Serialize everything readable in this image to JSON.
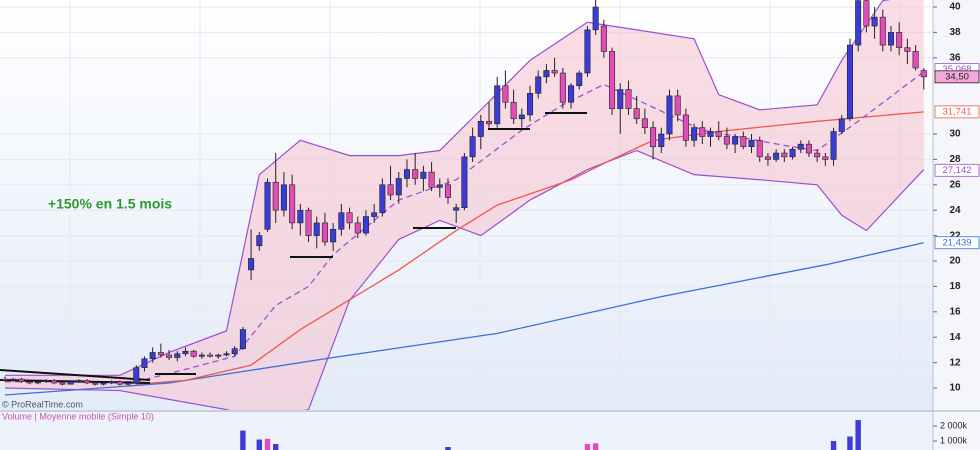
{
  "chart_data": {
    "type": "candlestick",
    "annotation": "+150% en 1.5 mois",
    "watermark": "© ProRealTime.com",
    "up_color": "#3b3bd6",
    "down_color": "#e24cb8",
    "ylim": [
      8.27,
      40.55
    ],
    "yticks": [
      10,
      12,
      14,
      16,
      18,
      20,
      22,
      24,
      26,
      28,
      30,
      36,
      38,
      40
    ],
    "grid": true,
    "candles": [
      [
        10.7,
        10.9,
        10.5,
        10.6
      ],
      [
        10.6,
        10.8,
        10.5,
        10.7
      ],
      [
        10.7,
        10.8,
        10.4,
        10.5
      ],
      [
        10.5,
        10.6,
        10.3,
        10.4
      ],
      [
        10.4,
        10.6,
        10.3,
        10.5
      ],
      [
        10.5,
        10.7,
        10.4,
        10.6
      ],
      [
        10.6,
        10.7,
        10.3,
        10.4
      ],
      [
        10.4,
        10.5,
        10.2,
        10.3
      ],
      [
        10.3,
        10.6,
        10.3,
        10.5
      ],
      [
        10.5,
        10.7,
        10.4,
        10.6
      ],
      [
        10.6,
        10.7,
        10.3,
        10.4
      ],
      [
        10.4,
        10.5,
        10.2,
        10.3
      ],
      [
        10.3,
        10.5,
        10.2,
        10.4
      ],
      [
        10.4,
        10.6,
        10.3,
        10.5
      ],
      [
        10.5,
        10.6,
        10.2,
        10.3
      ],
      [
        10.3,
        10.5,
        10.2,
        10.4
      ],
      [
        10.4,
        11.8,
        10.3,
        11.6
      ],
      [
        11.6,
        12.5,
        11.3,
        12.3
      ],
      [
        12.3,
        13.2,
        12.0,
        12.8
      ],
      [
        12.8,
        13.5,
        12.4,
        12.6
      ],
      [
        12.6,
        13.0,
        12.2,
        12.4
      ],
      [
        12.4,
        12.9,
        12.1,
        12.7
      ],
      [
        12.7,
        13.2,
        12.5,
        12.9
      ],
      [
        12.9,
        13.0,
        12.4,
        12.5
      ],
      [
        12.5,
        12.8,
        12.3,
        12.6
      ],
      [
        12.6,
        12.8,
        12.4,
        12.5
      ],
      [
        12.5,
        12.7,
        12.3,
        12.6
      ],
      [
        12.6,
        12.9,
        12.5,
        12.7
      ],
      [
        12.7,
        13.3,
        12.5,
        13.1
      ],
      [
        13.1,
        14.8,
        13.0,
        14.6
      ],
      [
        19.3,
        22.5,
        18.5,
        20.2
      ],
      [
        21.2,
        22.3,
        20.8,
        22.0
      ],
      [
        22.5,
        26.5,
        22.3,
        26.2
      ],
      [
        26.2,
        28.5,
        23.0,
        24.0
      ],
      [
        24.0,
        27.0,
        23.5,
        26.0
      ],
      [
        26.0,
        26.8,
        22.5,
        23.0
      ],
      [
        23.0,
        24.5,
        22.0,
        24.0
      ],
      [
        24.0,
        24.2,
        21.5,
        22.0
      ],
      [
        22.0,
        23.5,
        21.0,
        23.0
      ],
      [
        23.0,
        23.8,
        21.2,
        21.5
      ],
      [
        21.5,
        23.0,
        20.8,
        22.5
      ],
      [
        22.5,
        24.5,
        22.0,
        23.8
      ],
      [
        23.8,
        24.2,
        22.5,
        23.0
      ],
      [
        23.0,
        23.5,
        21.8,
        22.2
      ],
      [
        22.2,
        24.0,
        22.0,
        23.5
      ],
      [
        23.5,
        24.5,
        23.0,
        23.8
      ],
      [
        23.8,
        26.5,
        23.5,
        26.0
      ],
      [
        26.0,
        27.5,
        24.8,
        25.2
      ],
      [
        25.2,
        27.0,
        24.5,
        26.5
      ],
      [
        26.5,
        28.0,
        25.8,
        27.2
      ],
      [
        27.2,
        28.5,
        26.0,
        26.5
      ],
      [
        26.5,
        27.5,
        25.5,
        27.0
      ],
      [
        27.0,
        27.8,
        25.5,
        25.8
      ],
      [
        25.8,
        26.5,
        25.0,
        26.0
      ],
      [
        26.0,
        26.5,
        24.5,
        25.0
      ],
      [
        24.0,
        24.5,
        23.0,
        24.2
      ],
      [
        24.2,
        28.5,
        24.0,
        28.2
      ],
      [
        28.2,
        30.5,
        27.8,
        29.8
      ],
      [
        29.8,
        31.5,
        28.8,
        31.0
      ],
      [
        31.0,
        32.5,
        30.5,
        30.8
      ],
      [
        30.8,
        34.5,
        30.5,
        33.8
      ],
      [
        33.8,
        35.0,
        32.0,
        32.5
      ],
      [
        32.5,
        33.5,
        30.8,
        31.2
      ],
      [
        31.2,
        32.0,
        30.5,
        31.5
      ],
      [
        31.5,
        33.8,
        31.0,
        33.2
      ],
      [
        33.2,
        35.0,
        32.8,
        34.5
      ],
      [
        34.5,
        35.5,
        34.0,
        35.0
      ],
      [
        35.0,
        36.0,
        34.5,
        34.8
      ],
      [
        34.8,
        35.2,
        32.0,
        32.5
      ],
      [
        32.5,
        34.0,
        32.0,
        33.8
      ],
      [
        33.8,
        35.0,
        33.5,
        34.8
      ],
      [
        34.8,
        38.5,
        34.5,
        38.2
      ],
      [
        38.2,
        40.8,
        37.8,
        40.0
      ],
      [
        38.5,
        39.0,
        36.0,
        36.5
      ],
      [
        36.5,
        36.8,
        31.5,
        32.0
      ],
      [
        32.0,
        34.0,
        30.0,
        33.5
      ],
      [
        33.5,
        34.2,
        31.5,
        32.0
      ],
      [
        32.0,
        33.0,
        30.8,
        31.2
      ],
      [
        31.2,
        32.0,
        30.0,
        30.5
      ],
      [
        30.5,
        31.0,
        28.0,
        29.0
      ],
      [
        29.0,
        30.5,
        28.5,
        30.0
      ],
      [
        30.0,
        33.5,
        29.5,
        33.0
      ],
      [
        33.0,
        33.5,
        31.0,
        31.5
      ],
      [
        31.5,
        32.0,
        29.0,
        29.5
      ],
      [
        29.5,
        30.8,
        29.0,
        30.5
      ],
      [
        30.5,
        31.0,
        29.2,
        29.8
      ],
      [
        29.8,
        30.5,
        29.0,
        30.2
      ],
      [
        30.2,
        31.0,
        29.5,
        29.8
      ],
      [
        29.8,
        30.5,
        28.8,
        29.2
      ],
      [
        29.2,
        30.0,
        28.5,
        29.8
      ],
      [
        29.8,
        30.2,
        28.8,
        29.0
      ],
      [
        29.0,
        30.0,
        28.5,
        29.5
      ],
      [
        29.5,
        29.8,
        27.8,
        28.2
      ],
      [
        28.2,
        28.5,
        27.5,
        28.0
      ],
      [
        28.0,
        28.8,
        27.8,
        28.5
      ],
      [
        28.5,
        28.8,
        27.8,
        28.2
      ],
      [
        28.2,
        29.0,
        28.0,
        28.8
      ],
      [
        28.8,
        29.5,
        28.5,
        29.2
      ],
      [
        29.2,
        29.5,
        28.2,
        28.5
      ],
      [
        28.5,
        28.8,
        27.8,
        28.2
      ],
      [
        28.2,
        28.5,
        27.5,
        28.0
      ],
      [
        28.0,
        30.5,
        27.5,
        30.2
      ],
      [
        30.2,
        31.5,
        30.0,
        31.2
      ],
      [
        31.2,
        37.5,
        31.0,
        37.0
      ],
      [
        37.0,
        41.0,
        36.5,
        40.5
      ],
      [
        40.5,
        41.0,
        38.0,
        38.5
      ],
      [
        38.5,
        40.0,
        37.5,
        39.2
      ],
      [
        39.2,
        39.8,
        36.5,
        37.0
      ],
      [
        37.0,
        38.5,
        36.5,
        38.0
      ],
      [
        38.0,
        38.8,
        36.2,
        36.8
      ],
      [
        36.8,
        37.5,
        35.5,
        36.5
      ],
      [
        36.5,
        37.0,
        35.0,
        35.2
      ],
      [
        35.0,
        35.2,
        33.5,
        34.5
      ]
    ],
    "lines": [
      {
        "color": "#3a6fd8",
        "dash": false,
        "x": [
          0,
          20,
          40,
          60,
          80,
          100,
          112
        ],
        "values": [
          9.45,
          10.4,
          12.4,
          14.3,
          17.2,
          19.7,
          21.439
        ]
      },
      {
        "color": "#f0584a",
        "dash": false,
        "x": [
          16,
          22,
          30,
          36,
          48,
          55,
          60,
          69,
          74,
          79,
          87,
          99,
          112
        ],
        "values": [
          10.3,
          10.6,
          11.8,
          14.6,
          19.3,
          22.4,
          24.4,
          26.4,
          28,
          29.5,
          30.2,
          31.0,
          31.741
        ]
      },
      {
        "color": "#a050d0",
        "dash": true,
        "x": [
          0,
          16,
          21,
          28,
          33,
          37,
          40,
          48,
          55,
          63,
          68,
          73,
          77,
          85,
          95,
          99,
          104,
          112
        ],
        "values": [
          10.5,
          10.5,
          11.3,
          12.5,
          16.5,
          18,
          20.5,
          24.8,
          26.4,
          30.3,
          32.3,
          33.9,
          32.7,
          30.3,
          29.1,
          28.7,
          31,
          34.9
        ]
      }
    ],
    "band": {
      "color": "#9b4fd0",
      "fill": "#f6c6d2",
      "upper": {
        "x": [
          0,
          14,
          20,
          27,
          31,
          36,
          42,
          48,
          53,
          58,
          64,
          71,
          77,
          84,
          87,
          92,
          99,
          102,
          107,
          112
        ],
        "values": [
          11.0,
          11.0,
          12.8,
          14.5,
          26.8,
          29.5,
          28.3,
          28.3,
          28.7,
          31.9,
          35.8,
          38.8,
          38.2,
          37.5,
          33.1,
          31.9,
          32.3,
          35.8,
          40.5,
          41.0
        ]
      },
      "lower": {
        "x": [
          0,
          14,
          27,
          31,
          37,
          42,
          48,
          53,
          58,
          64,
          71,
          77,
          84,
          92,
          99,
          102,
          105,
          112
        ],
        "values": [
          10.0,
          9.8,
          8.3,
          7.5,
          8.3,
          16.9,
          21.7,
          23.2,
          22.0,
          24.8,
          27.2,
          28.7,
          26.8,
          26.4,
          26.0,
          23.6,
          22.4,
          27.2
        ]
      }
    },
    "price_tags": [
      {
        "value": 35.068,
        "label": "35,068",
        "color": "#9b4fd0",
        "bg": "#ffffff"
      },
      {
        "value": 34.5,
        "label": "34,50",
        "color": "#222222",
        "bg": "#f7a8d8"
      },
      {
        "value": 31.741,
        "label": "31,741",
        "color": "#f0584a",
        "bg": "#ffffff"
      },
      {
        "value": 27.142,
        "label": "27,142",
        "color": "#9b4fd0",
        "bg": "#ffffff"
      },
      {
        "value": 21.439,
        "label": "21,439",
        "color": "#3a6fd8",
        "bg": "#ffffff"
      }
    ],
    "volume": {
      "title": "Volume | Moyenne mobile (Simple 10)",
      "ylim": [
        400000,
        2940000
      ],
      "yticks": [
        {
          "value": 2000000,
          "label": "2 000k"
        },
        {
          "value": 1000000,
          "label": "1 000k"
        }
      ],
      "x": [
        29,
        31,
        32,
        33,
        54,
        71,
        72,
        101,
        103,
        104
      ],
      "values": [
        1700000,
        1100000,
        1150000,
        800000,
        600000,
        800000,
        850000,
        1000000,
        1300000,
        2400000
      ],
      "colors": [
        "#3b3bd6",
        "#3b3bd6",
        "#e24cb8",
        "#3b3bd6",
        "#3b3bd6",
        "#e24cb8",
        "#e24cb8",
        "#3b3bd6",
        "#3b3bd6",
        "#3b3bd6"
      ]
    }
  }
}
